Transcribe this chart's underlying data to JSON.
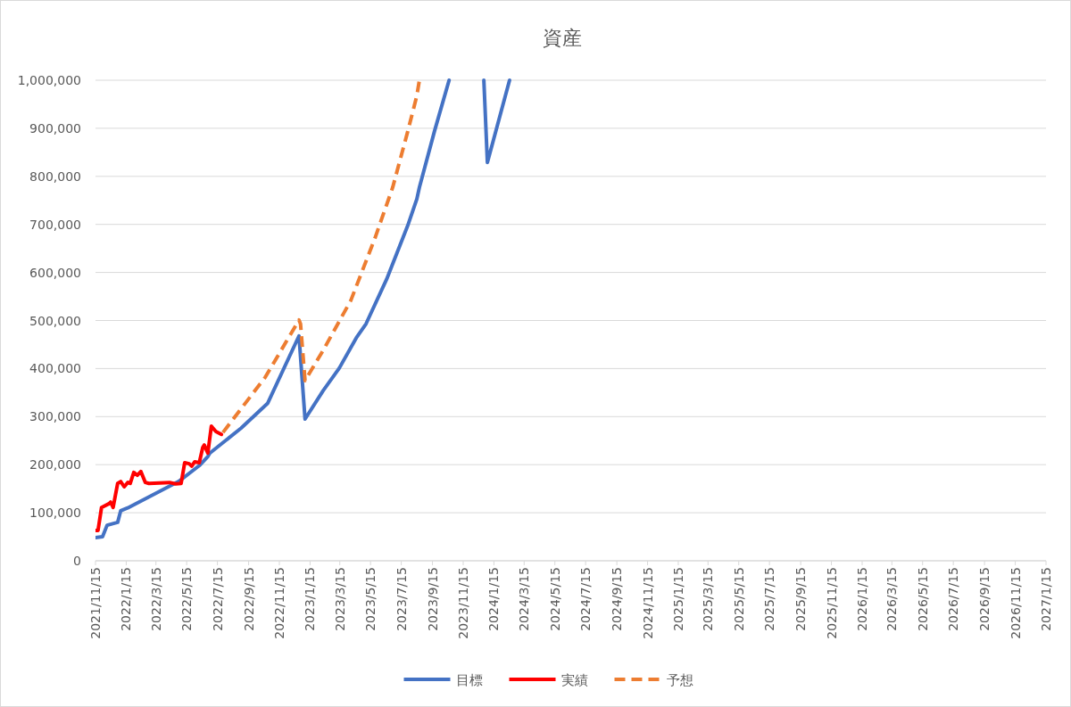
{
  "chart_data": {
    "type": "line",
    "title": "資産",
    "legend": "bottom",
    "grid": "y",
    "xlim": [
      "2021-11-15",
      "2027-01-15"
    ],
    "xticks": [
      {
        "value": "2021-11-15",
        "label": "2021/11/15"
      },
      {
        "value": "2022-01-15",
        "label": "2022/1/15"
      },
      {
        "value": "2022-03-15",
        "label": "2022/3/15"
      },
      {
        "value": "2022-05-15",
        "label": "2022/5/15"
      },
      {
        "value": "2022-07-15",
        "label": "2022/7/15"
      },
      {
        "value": "2022-09-15",
        "label": "2022/9/15"
      },
      {
        "value": "2022-11-15",
        "label": "2022/11/15"
      },
      {
        "value": "2023-01-15",
        "label": "2023/1/15"
      },
      {
        "value": "2023-03-15",
        "label": "2023/3/15"
      },
      {
        "value": "2023-05-15",
        "label": "2023/5/15"
      },
      {
        "value": "2023-07-15",
        "label": "2023/7/15"
      },
      {
        "value": "2023-09-15",
        "label": "2023/9/15"
      },
      {
        "value": "2023-11-15",
        "label": "2023/11/15"
      },
      {
        "value": "2024-01-15",
        "label": "2024/1/15"
      },
      {
        "value": "2024-03-15",
        "label": "2024/3/15"
      },
      {
        "value": "2024-05-15",
        "label": "2024/5/15"
      },
      {
        "value": "2024-07-15",
        "label": "2024/7/15"
      },
      {
        "value": "2024-09-15",
        "label": "2024/9/15"
      },
      {
        "value": "2024-11-15",
        "label": "2024/11/15"
      },
      {
        "value": "2025-01-15",
        "label": "2025/1/15"
      },
      {
        "value": "2025-03-15",
        "label": "2025/3/15"
      },
      {
        "value": "2025-05-15",
        "label": "2025/5/15"
      },
      {
        "value": "2025-07-15",
        "label": "2025/7/15"
      },
      {
        "value": "2025-09-15",
        "label": "2025/9/15"
      },
      {
        "value": "2025-11-15",
        "label": "2025/11/15"
      },
      {
        "value": "2026-01-15",
        "label": "2026/1/15"
      },
      {
        "value": "2026-03-15",
        "label": "2026/3/15"
      },
      {
        "value": "2026-05-15",
        "label": "2026/5/15"
      },
      {
        "value": "2026-07-15",
        "label": "2026/7/15"
      },
      {
        "value": "2026-09-15",
        "label": "2026/9/15"
      },
      {
        "value": "2026-11-15",
        "label": "2026/11/15"
      },
      {
        "value": "2027-01-15",
        "label": "2027/1/15"
      }
    ],
    "ylim": [
      0,
      1000000
    ],
    "yticks": [
      0,
      {
        "value": 100000,
        "label": "100,000"
      },
      {
        "value": 200000,
        "label": "200,000"
      },
      {
        "value": 300000,
        "label": "300,000"
      },
      {
        "value": 400000,
        "label": "400,000"
      },
      {
        "value": 500000,
        "label": "500,000"
      },
      {
        "value": 600000,
        "label": "600,000"
      },
      {
        "value": 700000,
        "label": "700,000"
      },
      {
        "value": 800000,
        "label": "800,000"
      },
      {
        "value": 900000,
        "label": "900,000"
      },
      {
        "value": 1000000,
        "label": "1,000,000"
      }
    ],
    "series": [
      {
        "name": "目標",
        "color": "#4472c4",
        "x": [
          "2021-11-15",
          "2021-11-29",
          "2021-12-08",
          "2021-12-29",
          "2022-01-04",
          "2022-01-18",
          "2022-04-29",
          "2022-06-09",
          "2022-06-26",
          "2022-06-30",
          "2022-08-31",
          "2022-10-23",
          "2022-12-24",
          "2023-01-05",
          "2023-02-10",
          "2023-03-14",
          "2023-04-18",
          "2023-05-06",
          "2023-06-16",
          "2023-07-28",
          "2023-08-15",
          "2023-08-20",
          "2023-09-19",
          "2023-10-18",
          "2023-11-20",
          "2023-12-26",
          "2024-01-02",
          "2024-02-15"
        ],
        "values": [
          48000,
          50000,
          74000,
          80000,
          104000,
          110000,
          165000,
          198000,
          217000,
          224000,
          276000,
          328000,
          468000,
          295000,
          354000,
          401000,
          466000,
          493000,
          586000,
          698000,
          753000,
          777000,
          894000,
          1000000,
          null,
          1000000,
          829000,
          1000000
        ]
      },
      {
        "name": "実績",
        "color": "#ff0000",
        "x": [
          "2021-11-15",
          "2021-11-20",
          "2021-11-27",
          "2021-12-12",
          "2021-12-15",
          "2021-12-20",
          "2021-12-29",
          "2022-01-04",
          "2022-01-11",
          "2022-01-18",
          "2022-01-23",
          "2022-01-30",
          "2022-02-06",
          "2022-02-13",
          "2022-02-22",
          "2022-03-01",
          "2022-04-11",
          "2022-04-23",
          "2022-05-04",
          "2022-05-11",
          "2022-05-20",
          "2022-05-25",
          "2022-05-31",
          "2022-06-09",
          "2022-06-16",
          "2022-06-19",
          "2022-06-26",
          "2022-07-03",
          "2022-07-12",
          "2022-07-23"
        ],
        "values": [
          63000,
          63000,
          111000,
          119000,
          122000,
          111000,
          161000,
          165000,
          154000,
          163000,
          161000,
          184000,
          178000,
          186000,
          163000,
          161000,
          163000,
          160000,
          161000,
          204000,
          202000,
          197000,
          206000,
          204000,
          236000,
          241000,
          224000,
          280000,
          269000,
          263000
        ]
      },
      {
        "name": "予想",
        "color": "#ed7d31",
        "line_style": "dashed",
        "x": [
          "2022-07-26",
          "2022-10-18",
          "2022-12-24",
          "2022-12-27",
          "2023-01-05",
          "2023-02-10",
          "2023-04-06",
          "2023-05-24",
          "2023-06-28",
          "2023-07-28",
          "2023-08-15",
          "2023-08-20"
        ],
        "values": [
          267000,
          382000,
          501000,
          493000,
          375000,
          438000,
          542000,
          672000,
          777000,
          894000,
          968000,
          1000000
        ]
      }
    ]
  }
}
